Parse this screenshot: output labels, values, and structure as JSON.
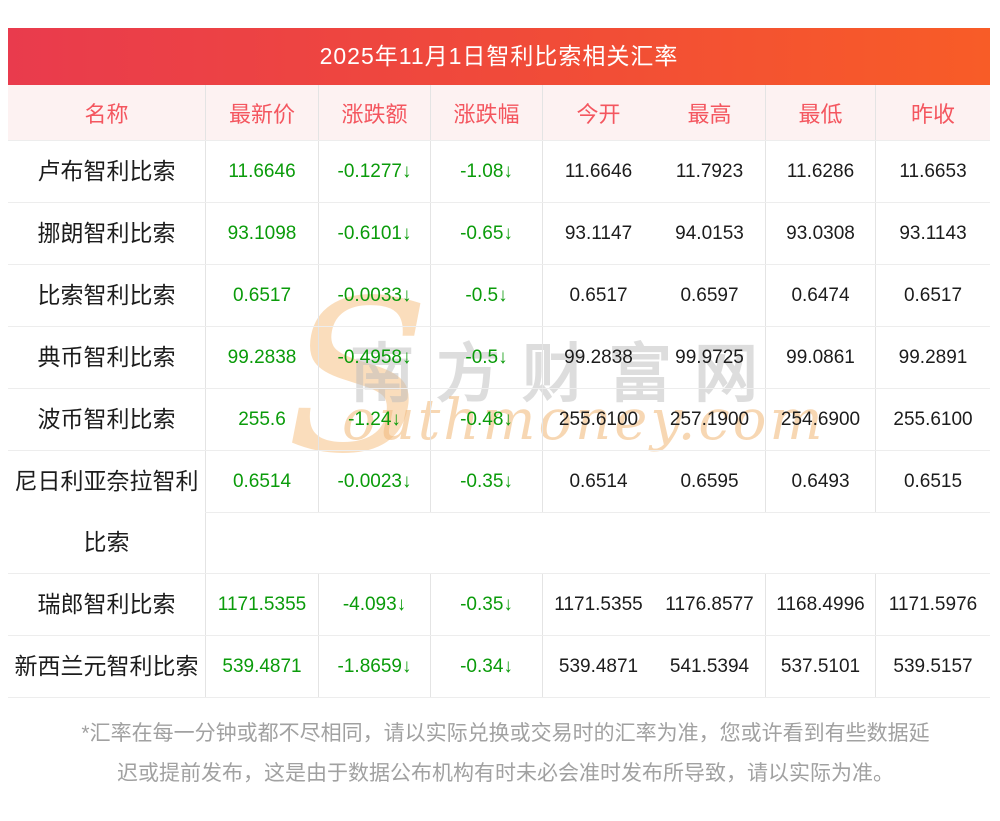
{
  "title": "2025年11月1日智利比索相关汇率",
  "colors": {
    "title_gradient_left": "#e93b4d",
    "title_gradient_right": "#f85c27",
    "header_bg": "#fdf2f2",
    "header_text": "#f4565f",
    "decline_green": "#0a9b0a"
  },
  "watermark": {
    "s_glyph": "S",
    "chinese": "南方财富网",
    "english": "outhmoney.com"
  },
  "table": {
    "headers": [
      "名称",
      "最新价",
      "涨跌额",
      "涨跌幅",
      "今开",
      "最高",
      "最低",
      "昨收"
    ],
    "rows": [
      {
        "name": "卢布智利比索",
        "latest": "11.6646",
        "change": "-0.1277↓",
        "pct": "-1.08↓",
        "open": "11.6646",
        "high": "11.7923",
        "low": "11.6286",
        "prev_close": "11.6653",
        "tall": false
      },
      {
        "name": "挪朗智利比索",
        "latest": "93.1098",
        "change": "-0.6101↓",
        "pct": "-0.65↓",
        "open": "93.1147",
        "high": "94.0153",
        "low": "93.0308",
        "prev_close": "93.1143",
        "tall": false
      },
      {
        "name": "比索智利比索",
        "latest": "0.6517",
        "change": "-0.0033↓",
        "pct": "-0.5↓",
        "open": "0.6517",
        "high": "0.6597",
        "low": "0.6474",
        "prev_close": "0.6517",
        "tall": false
      },
      {
        "name": "典币智利比索",
        "latest": "99.2838",
        "change": "-0.4958↓",
        "pct": "-0.5↓",
        "open": "99.2838",
        "high": "99.9725",
        "low": "99.0861",
        "prev_close": "99.2891",
        "tall": false
      },
      {
        "name": "波币智利比索",
        "latest": "255.6",
        "change": "-1.24↓",
        "pct": "-0.48↓",
        "open": "255.6100",
        "high": "257.1900",
        "low": "254.6900",
        "prev_close": "255.6100",
        "tall": false
      },
      {
        "name": "尼日利亚奈拉智利比索",
        "latest": "0.6514",
        "change": "-0.0023↓",
        "pct": "-0.35↓",
        "open": "0.6514",
        "high": "0.6595",
        "low": "0.6493",
        "prev_close": "0.6515",
        "tall": true
      },
      {
        "name": "瑞郎智利比索",
        "latest": "1171.5355",
        "change": "-4.093↓",
        "pct": "-0.35↓",
        "open": "1171.5355",
        "high": "1176.8577",
        "low": "1168.4996",
        "prev_close": "1171.5976",
        "tall": false
      },
      {
        "name": "新西兰元智利比索",
        "latest": "539.4871",
        "change": "-1.8659↓",
        "pct": "-0.34↓",
        "open": "539.4871",
        "high": "541.5394",
        "low": "537.5101",
        "prev_close": "539.5157",
        "tall": false
      }
    ]
  },
  "footnote_lines": [
    "*汇率在每一分钟或都不尽相同，请以实际兑换或交易时的汇率为准，您或许看到有些数据延",
    "迟或提前发布，这是由于数据公布机构有时未必会准时发布所导致，请以实际为准。"
  ]
}
